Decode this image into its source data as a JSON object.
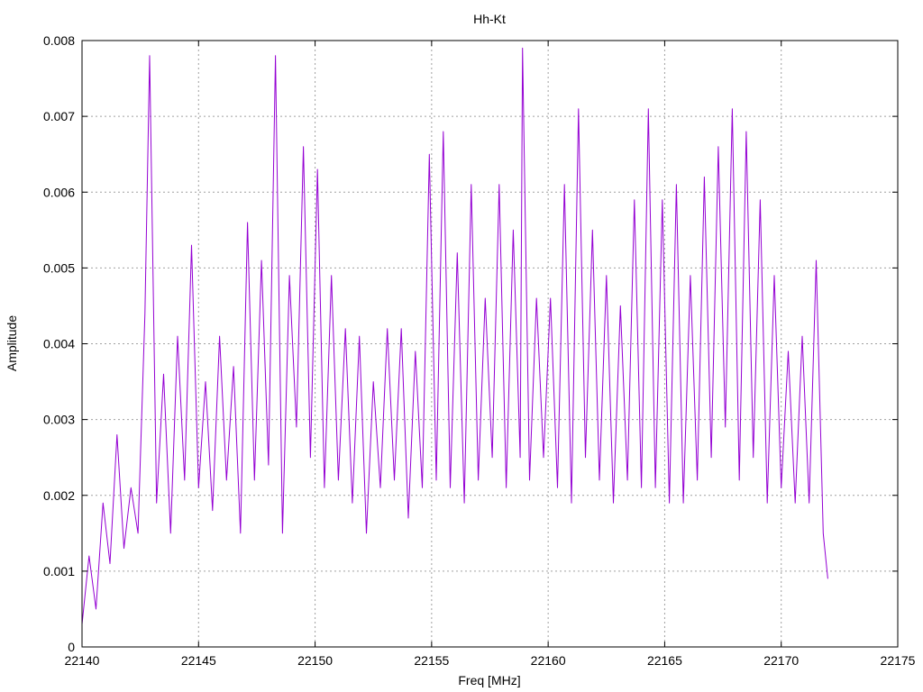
{
  "chart_data": {
    "type": "line",
    "title": "Hh-Kt",
    "xlabel": "Freq [MHz]",
    "ylabel": "Amplitude",
    "xlim": [
      22140,
      22175
    ],
    "ylim": [
      0,
      0.008
    ],
    "xticks": [
      22140,
      22145,
      22150,
      22155,
      22160,
      22165,
      22170,
      22175
    ],
    "xtick_labels": [
      "22140",
      "22145",
      "22150",
      "22155",
      "22160",
      "22165",
      "22170",
      "22175"
    ],
    "yticks": [
      0,
      0.001,
      0.002,
      0.003,
      0.004,
      0.005,
      0.006,
      0.007,
      0.008
    ],
    "ytick_labels": [
      "0",
      "0.001",
      "0.002",
      "0.003",
      "0.004",
      "0.005",
      "0.006",
      "0.007",
      "0.008"
    ],
    "grid": true,
    "series": [
      {
        "color": "#9400d3",
        "x": [
          22140.0,
          22140.3,
          22140.6,
          22140.9,
          22141.2,
          22141.5,
          22141.8,
          22142.1,
          22142.4,
          22142.7,
          22142.9,
          22143.2,
          22143.5,
          22143.8,
          22144.1,
          22144.4,
          22144.7,
          22145.0,
          22145.3,
          22145.6,
          22145.9,
          22146.2,
          22146.5,
          22146.8,
          22147.1,
          22147.4,
          22147.7,
          22148.0,
          22148.3,
          22148.6,
          22148.9,
          22149.2,
          22149.5,
          22149.8,
          22150.1,
          22150.4,
          22150.7,
          22151.0,
          22151.3,
          22151.6,
          22151.9,
          22152.2,
          22152.5,
          22152.8,
          22153.1,
          22153.4,
          22153.7,
          22154.0,
          22154.3,
          22154.6,
          22154.9,
          22155.2,
          22155.5,
          22155.8,
          22156.1,
          22156.4,
          22156.7,
          22157.0,
          22157.3,
          22157.6,
          22157.9,
          22158.2,
          22158.5,
          22158.8,
          22158.9,
          22159.2,
          22159.5,
          22159.8,
          22160.1,
          22160.4,
          22160.7,
          22161.0,
          22161.3,
          22161.6,
          22161.9,
          22162.2,
          22162.5,
          22162.8,
          22163.1,
          22163.4,
          22163.7,
          22164.0,
          22164.3,
          22164.6,
          22164.9,
          22165.2,
          22165.5,
          22165.8,
          22166.1,
          22166.4,
          22166.7,
          22167.0,
          22167.3,
          22167.6,
          22167.9,
          22168.2,
          22168.5,
          22168.8,
          22169.1,
          22169.4,
          22169.7,
          22170.0,
          22170.3,
          22170.6,
          22170.9,
          22171.2,
          22171.5,
          22171.8,
          22172.0
        ],
        "y": [
          0.0003,
          0.0012,
          0.0005,
          0.0019,
          0.0011,
          0.0028,
          0.0013,
          0.0021,
          0.0015,
          0.0044,
          0.0078,
          0.0019,
          0.0036,
          0.0015,
          0.0041,
          0.0022,
          0.0053,
          0.0021,
          0.0035,
          0.0018,
          0.0041,
          0.0022,
          0.0037,
          0.0015,
          0.0056,
          0.0022,
          0.0051,
          0.0024,
          0.0078,
          0.0015,
          0.0049,
          0.0029,
          0.0066,
          0.0025,
          0.0063,
          0.0021,
          0.0049,
          0.0022,
          0.0042,
          0.0019,
          0.0041,
          0.0015,
          0.0035,
          0.0021,
          0.0042,
          0.0022,
          0.0042,
          0.0017,
          0.0039,
          0.0021,
          0.0065,
          0.0022,
          0.0068,
          0.0021,
          0.0052,
          0.0019,
          0.0061,
          0.0022,
          0.0046,
          0.0025,
          0.0061,
          0.0021,
          0.0055,
          0.0025,
          0.0079,
          0.0022,
          0.0046,
          0.0025,
          0.0046,
          0.0021,
          0.0061,
          0.0019,
          0.0071,
          0.0025,
          0.0055,
          0.0022,
          0.0049,
          0.0019,
          0.0045,
          0.0022,
          0.0059,
          0.0021,
          0.0071,
          0.0021,
          0.0059,
          0.0019,
          0.0061,
          0.0019,
          0.0049,
          0.0022,
          0.0062,
          0.0025,
          0.0066,
          0.0029,
          0.0071,
          0.0022,
          0.0068,
          0.0025,
          0.0059,
          0.0019,
          0.0049,
          0.0021,
          0.0039,
          0.0019,
          0.0041,
          0.0019,
          0.0051,
          0.0015,
          0.0009
        ]
      }
    ]
  }
}
